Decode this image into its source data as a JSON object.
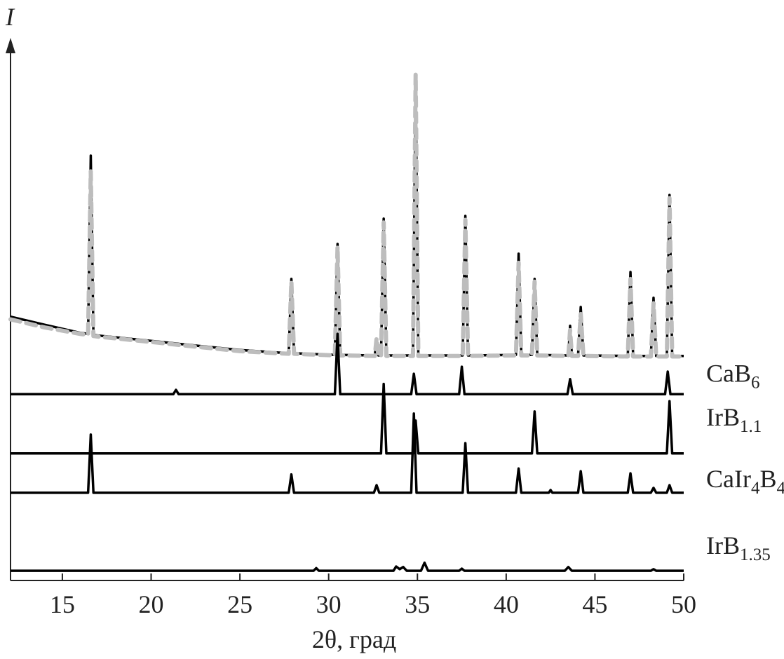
{
  "chart_data": {
    "type": "line",
    "x_label": "2θ, град",
    "y_label": "I",
    "xlim": [
      12.08,
      50
    ],
    "ylim": [
      0,
      100
    ],
    "xticks": [
      15,
      20,
      25,
      30,
      35,
      40,
      45,
      50
    ],
    "series": [
      {
        "color": "#000000",
        "style": "solid",
        "x": [
          12.08,
          14,
          16,
          16.45,
          16.6,
          16.75,
          17,
          20,
          22,
          25,
          27.75,
          27.9,
          28.05,
          30.35,
          30.5,
          30.65,
          32.6,
          32.7,
          32.8,
          32.95,
          33.1,
          33.25,
          34.75,
          34.9,
          35.05,
          37.55,
          37.7,
          37.85,
          40.55,
          40.7,
          40.85,
          41.45,
          41.6,
          41.75,
          43.5,
          43.6,
          43.7,
          44.05,
          44.2,
          44.35,
          46.85,
          47.0,
          47.15,
          48.15,
          48.3,
          48.45,
          49.05,
          49.2,
          49.35,
          50
        ],
        "values": [
          49,
          47.5,
          46,
          45.8,
          78.9,
          45.6,
          45.5,
          44.5,
          43.8,
          42.8,
          42.2,
          56,
          42.2,
          41.9,
          62.5,
          41.9,
          41.8,
          44.7,
          41.8,
          41.8,
          67.2,
          41.8,
          41.8,
          93.2,
          41.8,
          41.8,
          67.7,
          41.8,
          41.9,
          60.7,
          41.9,
          41.9,
          56,
          41.9,
          41.8,
          47.3,
          41.8,
          41.8,
          50.8,
          41.8,
          41.7,
          57.3,
          41.7,
          41.7,
          52.5,
          41.7,
          41.7,
          71.6,
          41.7,
          41.7
        ]
      },
      {
        "color": "#bdbdbd",
        "style": "dashed",
        "x": [
          12.08,
          14,
          16,
          16.45,
          16.6,
          16.75,
          17,
          20,
          22,
          25,
          27.75,
          27.9,
          28.05,
          30.35,
          30.5,
          30.65,
          32.6,
          32.7,
          32.8,
          32.95,
          33.1,
          33.25,
          34.75,
          34.9,
          35.05,
          37.55,
          37.7,
          37.85,
          40.55,
          40.7,
          40.85,
          41.45,
          41.6,
          41.75,
          43.5,
          43.6,
          43.7,
          44.05,
          44.2,
          44.35,
          46.85,
          47.0,
          47.15,
          48.15,
          48.3,
          48.45,
          49.05,
          49.2,
          49.35,
          50
        ],
        "values": [
          48.5,
          47,
          45.8,
          45.6,
          76,
          45.4,
          45.3,
          44.3,
          43.6,
          42.6,
          42.1,
          55.5,
          42.1,
          41.8,
          62,
          41.8,
          41.7,
          45,
          41.7,
          41.7,
          66.5,
          41.7,
          41.7,
          94,
          41.7,
          41.7,
          67,
          41.7,
          41.8,
          59,
          41.8,
          41.8,
          55.5,
          41.8,
          41.7,
          46.5,
          41.7,
          41.7,
          49.5,
          41.7,
          41.6,
          56,
          41.6,
          41.6,
          51.5,
          41.6,
          41.6,
          71,
          41.6,
          41.6
        ]
      },
      {
        "name": "CaB6",
        "color": "#000000",
        "style": "solid",
        "x": [
          12.08,
          21.25,
          21.4,
          21.55,
          30.35,
          30.5,
          30.65,
          34.65,
          34.8,
          34.95,
          37.35,
          37.5,
          37.65,
          43.45,
          43.6,
          43.75,
          48.95,
          49.1,
          49.25,
          50
        ],
        "values": [
          34.6,
          34.6,
          35.4,
          34.6,
          34.6,
          45.8,
          34.6,
          34.6,
          38.4,
          34.6,
          34.6,
          39.7,
          34.6,
          34.6,
          37.4,
          34.6,
          34.6,
          38.8,
          34.6,
          34.6
        ]
      },
      {
        "name": "IrB1.1",
        "color": "#000000",
        "style": "solid",
        "x": [
          12.08,
          32.95,
          33.1,
          33.25,
          34.75,
          34.9,
          35.05,
          41.45,
          41.6,
          41.75,
          49.05,
          49.2,
          49.35,
          50
        ],
        "values": [
          23.6,
          23.6,
          36.5,
          23.6,
          23.6,
          29.7,
          23.6,
          23.6,
          31.4,
          23.6,
          23.6,
          33.3,
          23.6,
          23.6
        ]
      },
      {
        "name": "CaIr4B4",
        "color": "#000000",
        "style": "solid",
        "x": [
          12.08,
          16.45,
          16.6,
          16.75,
          27.75,
          27.9,
          28.05,
          32.55,
          32.7,
          32.85,
          34.65,
          34.8,
          34.95,
          37.55,
          37.7,
          37.85,
          40.55,
          40.7,
          40.85,
          42.4,
          42.5,
          42.6,
          44.05,
          44.2,
          44.35,
          46.85,
          47.0,
          47.15,
          48.15,
          48.3,
          48.45,
          49.05,
          49.2,
          49.35,
          50
        ],
        "values": [
          16.3,
          16.3,
          27.1,
          16.3,
          16.3,
          19.7,
          16.3,
          16.3,
          17.7,
          16.3,
          16.3,
          31.0,
          16.3,
          16.3,
          25.5,
          16.3,
          16.3,
          20.8,
          16.3,
          16.3,
          16.8,
          16.3,
          16.3,
          20.3,
          16.3,
          16.3,
          19.9,
          16.3,
          16.3,
          17.2,
          16.3,
          16.3,
          17.7,
          16.3,
          16.3
        ]
      },
      {
        "name": "IrB1.35",
        "color": "#000000",
        "style": "solid",
        "x": [
          12.08,
          29.15,
          29.3,
          29.45,
          33.65,
          33.8,
          34.0,
          34.2,
          34.4,
          35.2,
          35.4,
          35.6,
          37.35,
          37.5,
          37.65,
          43.3,
          43.5,
          43.7,
          48.15,
          48.3,
          48.45,
          50
        ],
        "values": [
          1.8,
          1.8,
          2.3,
          1.8,
          1.8,
          2.6,
          2.1,
          2.5,
          1.8,
          1.8,
          3.3,
          1.8,
          1.8,
          2.2,
          1.8,
          1.8,
          2.5,
          1.8,
          1.8,
          2.1,
          1.8,
          1.8
        ]
      }
    ]
  }
}
